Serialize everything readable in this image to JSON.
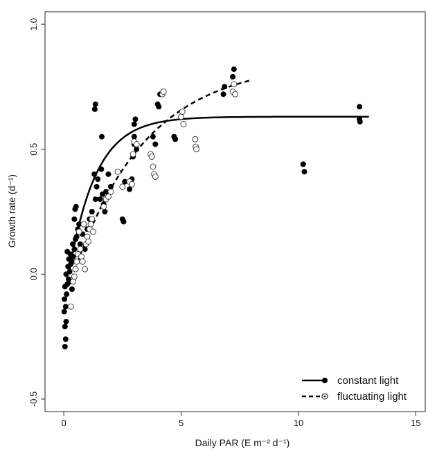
{
  "chart_data": {
    "type": "scatter",
    "xlabel": "Daily PAR (E m⁻² d⁻¹)",
    "ylabel": "Growth rate (d⁻¹)",
    "xlim": [
      -0.8,
      15.4
    ],
    "ylim": [
      -0.55,
      1.05
    ],
    "x_ticks": [
      0,
      5,
      10,
      15
    ],
    "y_ticks": [
      -0.5,
      0.0,
      0.5,
      1.0
    ],
    "x_tick_labels": [
      "0",
      "5",
      "10",
      "15"
    ],
    "y_tick_labels": [
      "-0.5",
      "0.0",
      "0.5",
      "1.0"
    ],
    "grid": false,
    "legend_position": "bottom-right",
    "series": [
      {
        "name": "constant light",
        "marker": "filled-circle",
        "line_style": "solid",
        "color": "#000000",
        "points": [
          [
            0.05,
            -0.29
          ],
          [
            0.08,
            -0.26
          ],
          [
            0.05,
            -0.21
          ],
          [
            0.1,
            -0.19
          ],
          [
            0.02,
            -0.15
          ],
          [
            0.08,
            -0.13
          ],
          [
            0.03,
            -0.1
          ],
          [
            0.12,
            -0.08
          ],
          [
            0.05,
            -0.05
          ],
          [
            0.15,
            -0.04
          ],
          [
            0.2,
            -0.02
          ],
          [
            0.1,
            0.0
          ],
          [
            0.25,
            0.01
          ],
          [
            0.18,
            0.03
          ],
          [
            0.3,
            0.04
          ],
          [
            0.22,
            0.06
          ],
          [
            0.28,
            0.08
          ],
          [
            0.15,
            0.09
          ],
          [
            0.35,
            0.05
          ],
          [
            0.4,
            0.07
          ],
          [
            0.45,
            0.1
          ],
          [
            0.38,
            0.12
          ],
          [
            0.5,
            0.14
          ],
          [
            0.55,
            0.15
          ],
          [
            0.6,
            0.18
          ],
          [
            0.65,
            0.2
          ],
          [
            0.7,
            0.12
          ],
          [
            0.8,
            0.16
          ],
          [
            0.9,
            0.1
          ],
          [
            0.48,
            0.26
          ],
          [
            0.52,
            0.27
          ],
          [
            0.45,
            0.22
          ],
          [
            0.3,
            -0.03
          ],
          [
            0.35,
            -0.06
          ],
          [
            1.0,
            0.18
          ],
          [
            1.1,
            0.22
          ],
          [
            1.2,
            0.25
          ],
          [
            1.35,
            0.3
          ],
          [
            1.4,
            0.35
          ],
          [
            1.3,
            0.4
          ],
          [
            1.45,
            0.38
          ],
          [
            1.6,
            0.42
          ],
          [
            1.65,
            0.32
          ],
          [
            1.7,
            0.28
          ],
          [
            1.75,
            0.25
          ],
          [
            1.8,
            0.33
          ],
          [
            1.55,
            0.3
          ],
          [
            1.62,
            0.55
          ],
          [
            1.32,
            0.66
          ],
          [
            1.35,
            0.68
          ],
          [
            1.9,
            0.4
          ],
          [
            2.0,
            0.35
          ],
          [
            2.5,
            0.22
          ],
          [
            2.55,
            0.21
          ],
          [
            2.6,
            0.37
          ],
          [
            2.8,
            0.34
          ],
          [
            2.85,
            0.37
          ],
          [
            2.9,
            0.38
          ],
          [
            2.95,
            0.47
          ],
          [
            3.0,
            0.55
          ],
          [
            3.0,
            0.6
          ],
          [
            3.05,
            0.62
          ],
          [
            3.1,
            0.5
          ],
          [
            3.0,
            0.52
          ],
          [
            3.8,
            0.55
          ],
          [
            3.9,
            0.52
          ],
          [
            4.0,
            0.68
          ],
          [
            4.05,
            0.67
          ],
          [
            4.1,
            0.72
          ],
          [
            4.7,
            0.55
          ],
          [
            4.75,
            0.54
          ],
          [
            6.8,
            0.72
          ],
          [
            6.85,
            0.75
          ],
          [
            7.2,
            0.79
          ],
          [
            7.25,
            0.82
          ],
          [
            10.2,
            0.44
          ],
          [
            10.25,
            0.41
          ],
          [
            12.6,
            0.67
          ],
          [
            12.6,
            0.62
          ],
          [
            12.62,
            0.61
          ]
        ]
      },
      {
        "name": "fluctuating light",
        "marker": "open-circle",
        "line_style": "dashed",
        "color": "#000000",
        "points": [
          [
            0.3,
            -0.13
          ],
          [
            0.4,
            -0.03
          ],
          [
            0.45,
            -0.01
          ],
          [
            0.5,
            0.02
          ],
          [
            0.55,
            0.05
          ],
          [
            0.6,
            0.08
          ],
          [
            0.7,
            0.1
          ],
          [
            0.75,
            0.07
          ],
          [
            0.8,
            0.05
          ],
          [
            0.9,
            0.02
          ],
          [
            0.95,
            0.12
          ],
          [
            1.0,
            0.15
          ],
          [
            1.05,
            0.13
          ],
          [
            1.1,
            0.18
          ],
          [
            1.15,
            0.2
          ],
          [
            0.65,
            0.17
          ],
          [
            0.85,
            0.2
          ],
          [
            1.2,
            0.22
          ],
          [
            1.25,
            0.17
          ],
          [
            1.7,
            0.27
          ],
          [
            1.8,
            0.3
          ],
          [
            1.9,
            0.31
          ],
          [
            2.0,
            0.33
          ],
          [
            2.3,
            0.41
          ],
          [
            2.5,
            0.35
          ],
          [
            2.8,
            0.37
          ],
          [
            2.9,
            0.36
          ],
          [
            2.95,
            0.48
          ],
          [
            3.0,
            0.53
          ],
          [
            3.1,
            0.52
          ],
          [
            3.7,
            0.48
          ],
          [
            3.75,
            0.47
          ],
          [
            3.8,
            0.43
          ],
          [
            3.85,
            0.4
          ],
          [
            3.9,
            0.39
          ],
          [
            4.2,
            0.72
          ],
          [
            4.25,
            0.73
          ],
          [
            5.0,
            0.63
          ],
          [
            5.05,
            0.65
          ],
          [
            5.1,
            0.6
          ],
          [
            5.6,
            0.54
          ],
          [
            5.62,
            0.51
          ],
          [
            5.65,
            0.5
          ],
          [
            7.2,
            0.73
          ],
          [
            7.25,
            0.76
          ],
          [
            7.3,
            0.72
          ]
        ]
      }
    ]
  },
  "legend": {
    "items": [
      "constant light",
      "fluctuating light"
    ]
  }
}
